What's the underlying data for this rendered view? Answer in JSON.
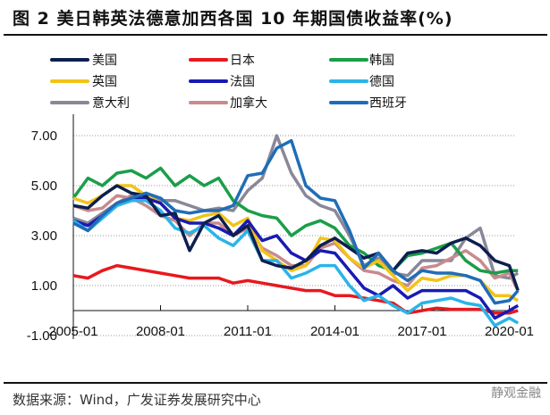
{
  "title": "图 2  美日韩英法德意加西各国 10 年期国债收益率(%)",
  "source": "数据来源：Wind，广发证券发展研究中心",
  "watermark": "静观金融",
  "chart_data": {
    "type": "line",
    "title": "美日韩英法德意加西各国 10 年期国债收益率(%)",
    "xlabel": "",
    "ylabel": "",
    "ylim": [
      -1,
      8
    ],
    "yticks": [
      7,
      5,
      3,
      1,
      -1
    ],
    "ytick_labels": [
      "7.00",
      "5.00",
      "3.00",
      "1.00",
      "-1.00"
    ],
    "xticks": [
      2005,
      2008,
      2011,
      2014,
      2017,
      2020
    ],
    "xtick_labels": [
      "2005-01",
      "2008-01",
      "2011-01",
      "2014-01",
      "2017-01",
      "2020-01"
    ],
    "xlim": [
      2005,
      2020.3
    ],
    "grid": "horizontal dotted",
    "legend_position": "top",
    "x": [
      2005,
      2005.5,
      2006,
      2006.5,
      2007,
      2007.5,
      2008,
      2008.5,
      2009,
      2009.5,
      2010,
      2010.5,
      2011,
      2011.5,
      2012,
      2012.5,
      2013,
      2013.5,
      2014,
      2014.5,
      2015,
      2015.5,
      2016,
      2016.5,
      2017,
      2017.5,
      2018,
      2018.5,
      2019,
      2019.5,
      2020,
      2020.3
    ],
    "series": [
      {
        "name": "美国",
        "color": "#0d1f4f",
        "values": [
          4.2,
          4.1,
          4.6,
          5.0,
          4.7,
          4.6,
          3.8,
          3.9,
          2.4,
          3.5,
          3.8,
          3.0,
          3.4,
          2.0,
          1.8,
          1.7,
          2.0,
          2.6,
          2.9,
          2.5,
          2.1,
          2.3,
          1.6,
          2.3,
          2.4,
          2.3,
          2.7,
          2.9,
          2.6,
          2.0,
          1.8,
          0.8
        ]
      },
      {
        "name": "日本",
        "color": "#e8181e",
        "values": [
          1.4,
          1.3,
          1.6,
          1.8,
          1.7,
          1.6,
          1.5,
          1.4,
          1.3,
          1.3,
          1.3,
          1.1,
          1.2,
          1.1,
          1.0,
          0.9,
          0.8,
          0.8,
          0.6,
          0.6,
          0.5,
          0.4,
          0.3,
          -0.1,
          0.0,
          0.1,
          0.05,
          0.05,
          0.05,
          -0.1,
          -0.1,
          0.0
        ]
      },
      {
        "name": "韩国",
        "color": "#1a9e4a",
        "values": [
          4.5,
          5.3,
          5.0,
          5.5,
          5.6,
          5.3,
          5.7,
          5.0,
          5.4,
          5.0,
          5.3,
          4.4,
          4.0,
          3.8,
          3.7,
          3.0,
          3.4,
          3.6,
          3.3,
          2.6,
          2.3,
          1.8,
          1.6,
          2.2,
          2.3,
          2.5,
          2.7,
          2.0,
          1.6,
          1.5,
          1.6,
          1.6
        ]
      },
      {
        "name": "英国",
        "color": "#f2c318",
        "values": [
          4.5,
          4.3,
          4.6,
          5.0,
          5.0,
          4.6,
          4.3,
          3.7,
          3.6,
          3.8,
          3.9,
          3.4,
          3.7,
          2.4,
          2.0,
          1.6,
          1.8,
          2.9,
          2.8,
          2.1,
          1.7,
          2.0,
          1.4,
          0.8,
          1.3,
          1.2,
          1.4,
          1.4,
          1.2,
          0.6,
          0.6,
          0.4
        ]
      },
      {
        "name": "法国",
        "color": "#1a1ab3",
        "values": [
          3.6,
          3.4,
          3.8,
          4.3,
          4.5,
          4.5,
          4.3,
          3.7,
          3.5,
          3.5,
          3.3,
          3.0,
          3.6,
          2.8,
          3.0,
          2.3,
          2.0,
          2.4,
          2.3,
          1.6,
          0.9,
          0.6,
          1.0,
          0.5,
          0.8,
          0.8,
          0.8,
          0.8,
          0.5,
          -0.3,
          0.0,
          0.2
        ]
      },
      {
        "name": "德国",
        "color": "#2ab4e8",
        "values": [
          3.6,
          3.2,
          3.7,
          4.2,
          4.4,
          4.4,
          4.0,
          3.3,
          3.1,
          3.4,
          2.9,
          2.6,
          3.2,
          2.0,
          2.0,
          1.3,
          1.5,
          1.8,
          1.8,
          1.0,
          0.4,
          0.6,
          0.2,
          -0.1,
          0.3,
          0.4,
          0.5,
          0.3,
          0.2,
          -0.6,
          -0.3,
          -0.5
        ]
      },
      {
        "name": "意大利",
        "color": "#888898",
        "values": [
          3.7,
          3.5,
          3.9,
          4.3,
          4.6,
          4.6,
          4.4,
          4.4,
          4.2,
          4.0,
          4.1,
          4.0,
          4.8,
          5.3,
          7.0,
          5.5,
          4.6,
          4.2,
          4.0,
          3.0,
          1.8,
          2.1,
          1.5,
          1.4,
          2.0,
          2.0,
          2.0,
          2.9,
          3.3,
          1.4,
          1.3,
          1.5
        ]
      },
      {
        "name": "加拿大",
        "color": "#c98a8e",
        "values": [
          4.2,
          4.0,
          4.1,
          4.6,
          4.5,
          4.2,
          3.8,
          3.6,
          3.0,
          3.5,
          3.5,
          3.0,
          3.3,
          2.5,
          2.2,
          1.8,
          1.8,
          2.5,
          2.7,
          2.1,
          1.6,
          1.5,
          1.2,
          1.0,
          1.7,
          1.8,
          2.1,
          2.4,
          2.0,
          1.3,
          1.5,
          0.8
        ]
      },
      {
        "name": "西班牙",
        "color": "#1f6db8",
        "values": [
          3.5,
          3.2,
          3.8,
          4.3,
          4.5,
          4.7,
          4.5,
          4.0,
          3.9,
          4.0,
          4.0,
          4.2,
          5.4,
          5.5,
          6.5,
          6.8,
          5.0,
          4.5,
          4.4,
          3.2,
          1.7,
          2.3,
          1.6,
          1.2,
          1.6,
          1.5,
          1.5,
          1.4,
          1.2,
          0.3,
          0.4,
          0.8
        ]
      }
    ]
  }
}
